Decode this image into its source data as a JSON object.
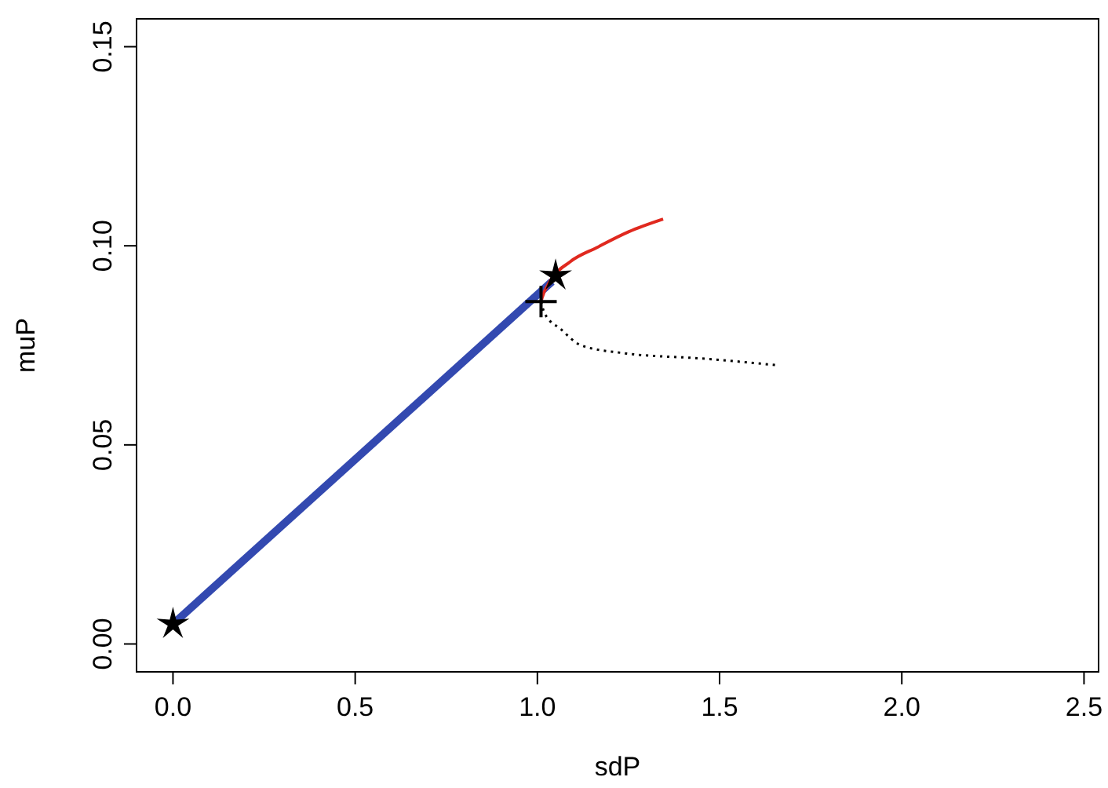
{
  "chart_data": {
    "type": "line",
    "xlabel": "sdP",
    "ylabel": "muP",
    "xlim": [
      -0.1,
      2.54
    ],
    "ylim": [
      -0.007,
      0.157
    ],
    "xticks": [
      {
        "value": 0,
        "label": "0.0"
      },
      {
        "value": 0.5,
        "label": "0.5"
      },
      {
        "value": 1,
        "label": "1.0"
      },
      {
        "value": 1.5,
        "label": "1.5"
      },
      {
        "value": 2,
        "label": "2.0"
      },
      {
        "value": 2.5,
        "label": "2.5"
      }
    ],
    "yticks": [
      {
        "value": 0,
        "label": "0.00"
      },
      {
        "value": 0.05,
        "label": "0.05"
      },
      {
        "value": 0.1,
        "label": "0.10"
      },
      {
        "value": 0.15,
        "label": "0.15"
      }
    ],
    "grid": false,
    "series": [
      {
        "color": "#3349b0",
        "line_style": "solid",
        "marker": "none",
        "x": [
          0,
          1.04
        ],
        "values": [
          0.005,
          0.091
        ]
      },
      {
        "color": "#e0291f",
        "line_style": "solid",
        "marker": "none",
        "x": [
          1.01,
          1.013,
          1.034,
          1.09,
          1.164,
          1.25,
          1.345
        ],
        "values": [
          0.086,
          0.087,
          0.091,
          0.096,
          0.0996,
          0.1035,
          0.1067
        ]
      },
      {
        "color": "#000000",
        "line_style": "dotted",
        "marker": "none",
        "x": [
          1.01,
          1.02,
          1.065,
          1.12,
          1.24,
          1.45,
          1.66
        ],
        "values": [
          0.086,
          0.083,
          0.079,
          0.075,
          0.073,
          0.0717,
          0.07
        ]
      },
      {
        "type": "scatter",
        "color": "#000000",
        "marker": "star",
        "x": [
          0,
          1.05
        ],
        "values": [
          0.005,
          0.0925
        ]
      },
      {
        "type": "scatter",
        "color": "#000000",
        "marker": "cross",
        "x": [
          1.01
        ],
        "values": [
          0.086
        ]
      }
    ]
  }
}
